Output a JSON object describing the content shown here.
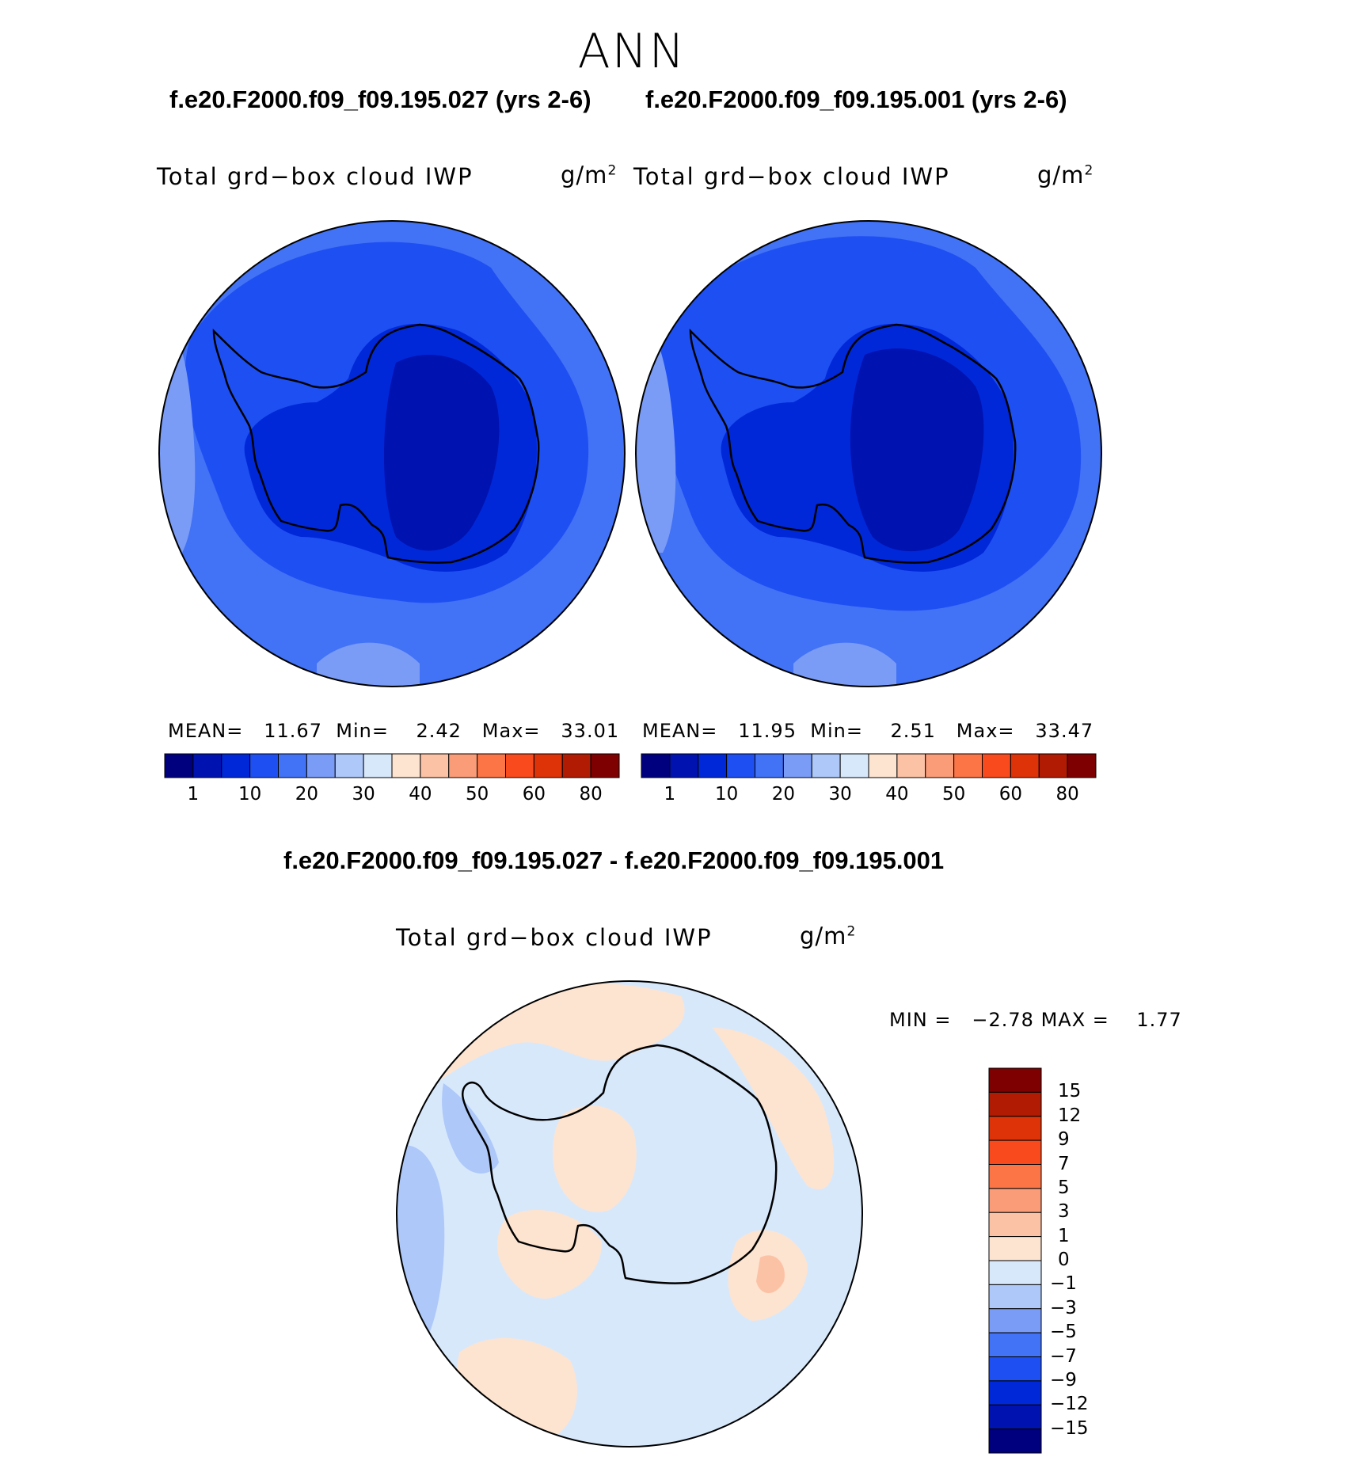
{
  "figure": {
    "season": "ANN",
    "case_titles": [
      "f.e20.F2000.f09_f09.195.027 (yrs 2-6)",
      "f.e20.F2000.f09_f09.195.001 (yrs 2-6)"
    ],
    "diff_title": "f.e20.F2000.f09_f09.195.027 - f.e20.F2000.f09_f09.195.001"
  },
  "panels": [
    {
      "variable": "Total grd−box cloud IWP",
      "units": "g/m",
      "units_sup": "2",
      "mean_label": "MEAN=",
      "mean": "11.67",
      "min_label": "Min=",
      "min": "2.42",
      "max_label": "Max=",
      "max": "33.01"
    },
    {
      "variable": "Total grd−box cloud IWP",
      "units": "g/m",
      "units_sup": "2",
      "mean_label": "MEAN=",
      "mean": "11.95",
      "min_label": "Min=",
      "min": "2.51",
      "max_label": "Max=",
      "max": "33.47"
    }
  ],
  "diff_panel": {
    "variable": "Total grd−box cloud IWP",
    "units": "g/m",
    "units_sup": "2",
    "min_label": "MIN =",
    "min": "−2.78",
    "max_label": "MAX =",
    "max": "1.77"
  },
  "colorbar_abs": {
    "colors": [
      "#00007f",
      "#0012b0",
      "#0028d8",
      "#1e4ff2",
      "#4272f5",
      "#7a9cf7",
      "#adc8f9",
      "#d8e8fb",
      "#fde4d0",
      "#fcc2a6",
      "#fb9c78",
      "#fb7547",
      "#f94a1d",
      "#de3208",
      "#b11b03",
      "#7f0000"
    ],
    "labels": [
      "1",
      "10",
      "20",
      "30",
      "40",
      "50",
      "60",
      "80"
    ]
  },
  "colorbar_diff": {
    "colors": [
      "#00007f",
      "#0012b0",
      "#0028d8",
      "#1e4ff2",
      "#4272f5",
      "#7a9cf7",
      "#adc8f9",
      "#d8e8fb",
      "#fde4d0",
      "#fcc2a6",
      "#fb9c78",
      "#fb7547",
      "#f94a1d",
      "#de3208",
      "#b11b03",
      "#7f0000"
    ],
    "labels": [
      "15",
      "12",
      "9",
      "7",
      "5",
      "3",
      "1",
      "0",
      "−1",
      "−3",
      "−5",
      "−7",
      "−9",
      "−12",
      "−15"
    ]
  },
  "map_fill": {
    "ocean_outer_abs": "#4272f5",
    "ocean_mid_abs": "#1e4ff2",
    "land_abs": "#0028d8",
    "core_abs": "#0012b0",
    "light_patch_abs": "#7a9cf7",
    "diff_base": "#d8e8fb",
    "diff_pos": "#fde4d0",
    "diff_neg": "#adc8f9",
    "diff_strong_pos": "#fcc2a6",
    "diff_strong_neg": "#7a9cf7"
  }
}
